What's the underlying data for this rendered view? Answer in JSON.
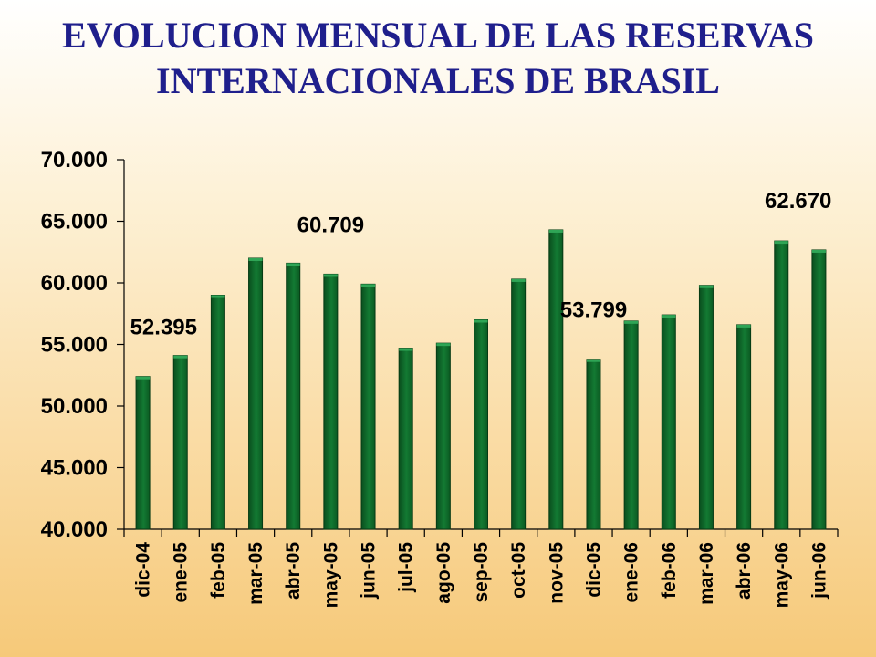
{
  "chart_data": {
    "type": "bar",
    "title": "EVOLUCION MENSUAL DE LAS RESERVAS INTERNACIONALES DE BRASIL",
    "xlabel": "",
    "ylabel": "",
    "ylim": [
      40000,
      70000
    ],
    "y_ticks": [
      "40.000",
      "45.000",
      "50.000",
      "55.000",
      "60.000",
      "65.000",
      "70.000"
    ],
    "y_tick_values": [
      40000,
      45000,
      50000,
      55000,
      60000,
      65000,
      70000
    ],
    "categories": [
      "dic-04",
      "ene-05",
      "feb-05",
      "mar-05",
      "abr-05",
      "may-05",
      "jun-05",
      "jul-05",
      "ago-05",
      "sep-05",
      "oct-05",
      "nov-05",
      "dic-05",
      "ene-06",
      "feb-06",
      "mar-06",
      "abr-06",
      "may-06",
      "jun-06"
    ],
    "values": [
      52395,
      54100,
      59000,
      62000,
      61600,
      60709,
      59900,
      54700,
      55100,
      57000,
      60300,
      64300,
      53799,
      56900,
      57400,
      59800,
      56600,
      63400,
      62670
    ],
    "data_labels": [
      {
        "index": 0,
        "text": "52.395"
      },
      {
        "index": 5,
        "text": "60.709"
      },
      {
        "index": 12,
        "text": "53.799"
      },
      {
        "index": 18,
        "text": "62.670"
      }
    ],
    "bar_color": "#0d6b2a",
    "grid": false,
    "legend": "none"
  }
}
